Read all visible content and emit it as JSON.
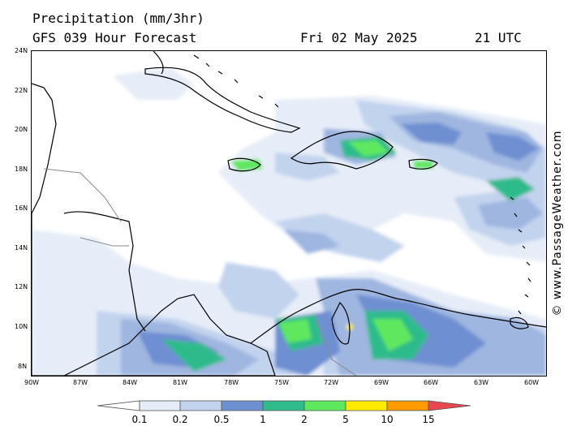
{
  "header": {
    "title": "Precipitation (mm/3hr)",
    "subtitle": "GFS 039 Hour Forecast",
    "date": "Fri 02 May 2025",
    "time": "21 UTC"
  },
  "map": {
    "region": "Caribbean Sea",
    "lat_labels": [
      "24N",
      "22N",
      "20N",
      "18N",
      "16N",
      "14N",
      "12N",
      "10N",
      "8N"
    ],
    "lon_labels": [
      "90W",
      "87W",
      "84W",
      "81W",
      "78W",
      "75W",
      "72W",
      "69W",
      "66W",
      "63W",
      "60W"
    ],
    "colors": {
      "land_outline": "#000000",
      "border": "#8a8a8a"
    }
  },
  "scale": {
    "labels": [
      "0.1",
      "0.2",
      "0.5",
      "1",
      "2",
      "5",
      "10",
      "15"
    ],
    "colors": [
      "#ffffff",
      "#e6edf8",
      "#c2d3ee",
      "#9fb6e0",
      "#6e8fd2",
      "#2fbb8c",
      "#5ee85e",
      "#ffea00",
      "#ff9a00",
      "#e8474f"
    ]
  },
  "credit": "© www.PassageWeather.com"
}
